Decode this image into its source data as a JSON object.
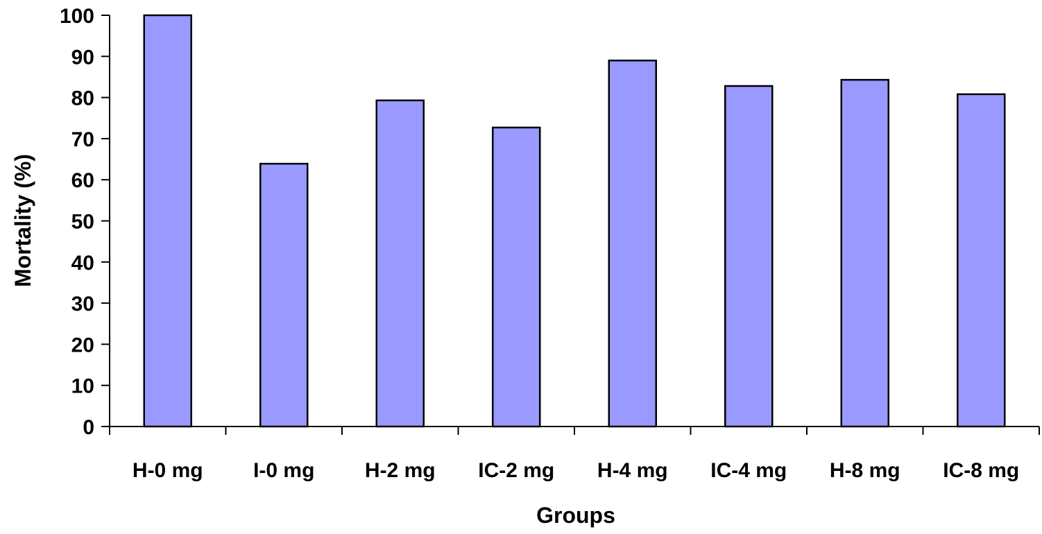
{
  "chart_data": {
    "type": "bar",
    "title": "",
    "xlabel": "Groups",
    "ylabel": "Mortality (%)",
    "ylim": [
      0,
      100
    ],
    "yticks": [
      0,
      10,
      20,
      30,
      40,
      50,
      60,
      70,
      80,
      90,
      100
    ],
    "grid": false,
    "legend": null,
    "categories": [
      "H-0 mg",
      "I-0 mg",
      "H-2 mg",
      "IC-2 mg",
      "H-4 mg",
      "IC-4 mg",
      "H-8 mg",
      "IC-8 mg"
    ],
    "values": [
      100,
      63.9,
      79.3,
      72.7,
      89.0,
      82.8,
      84.3,
      80.8
    ],
    "bar_color": "#9999FF",
    "bar_edge_color": "#000000"
  }
}
